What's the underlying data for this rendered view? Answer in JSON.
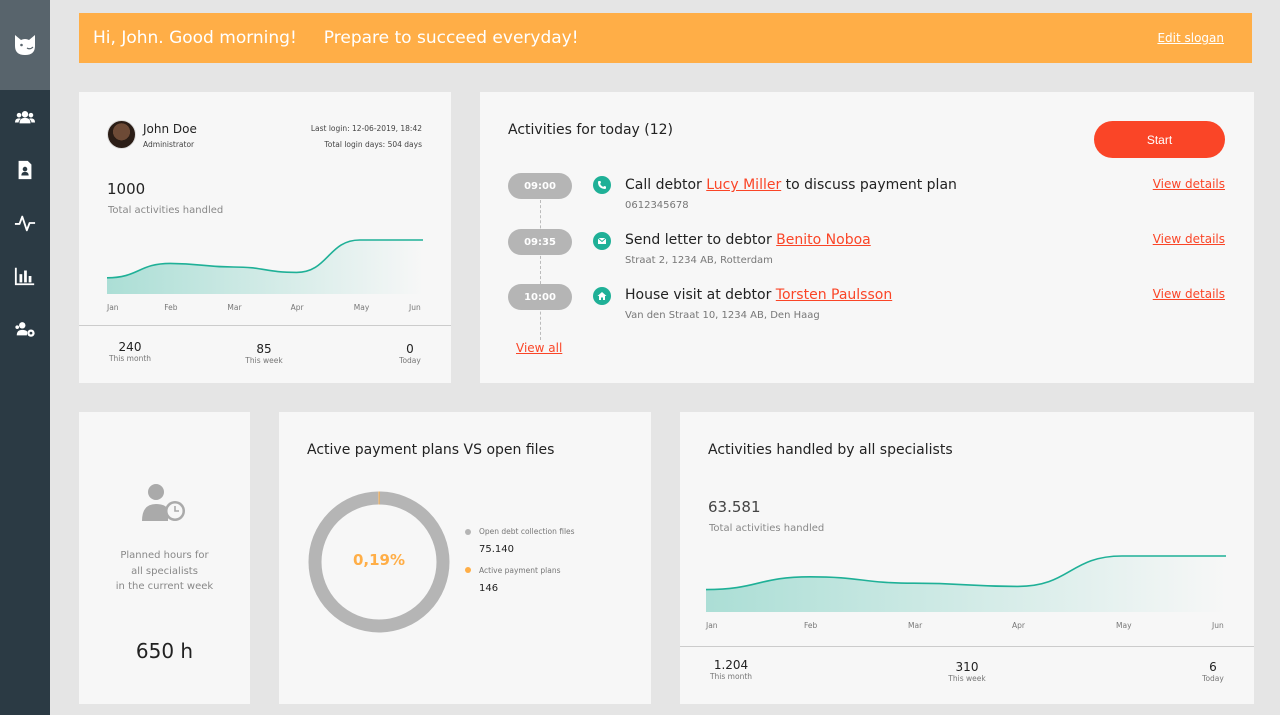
{
  "sidebar": {
    "logo": "cat-logo-icon",
    "items": [
      {
        "icon": "users-icon"
      },
      {
        "icon": "document-user-icon"
      },
      {
        "icon": "activity-pulse-icon"
      },
      {
        "icon": "bar-chart-icon"
      },
      {
        "icon": "users-settings-icon"
      }
    ]
  },
  "banner": {
    "greeting": "Hi, John. Good morning!",
    "slogan": "Prepare to succeed everyday!",
    "edit_label": "Edit slogan",
    "color": "#ffae47"
  },
  "profile": {
    "name": "John Doe",
    "role": "Administrator",
    "last_login": "Last login: 12-06-2019, 18:42",
    "total_login_days": "Total login days: 504 days",
    "total_value": "1000",
    "total_label": "Total activities handled",
    "chart_data": {
      "type": "area",
      "x": [
        "Jan",
        "Feb",
        "Mar",
        "Apr",
        "May",
        "Jun"
      ],
      "series": [
        {
          "values": [
            9,
            17,
            15,
            12,
            30,
            30
          ]
        }
      ],
      "ylim": [
        0,
        40
      ],
      "grid": false,
      "xlabel": "",
      "ylabel": "",
      "title": ""
    },
    "stats": [
      {
        "value": "240",
        "label": "This month"
      },
      {
        "value": "85",
        "label": "This week"
      },
      {
        "value": "0",
        "label": "Today"
      }
    ]
  },
  "activities": {
    "title": "Activities for today (12)",
    "start_label": "Start",
    "view_all_label": "View all",
    "accent": "#fa4527",
    "items": [
      {
        "time": "09:00",
        "icon": "phone-icon",
        "prefix": "Call debtor ",
        "link": "Lucy Miller",
        "suffix": " to discuss payment plan",
        "detail": "0612345678",
        "view": "View details"
      },
      {
        "time": "09:35",
        "icon": "mail-icon",
        "prefix": "Send letter to debtor ",
        "link": "Benito Noboa",
        "suffix": "",
        "detail": "Straat 2, 1234 AB, Rotterdam",
        "view": "View details"
      },
      {
        "time": "10:00",
        "icon": "home-icon",
        "prefix": "House visit at debtor ",
        "link": "Torsten Paulsson",
        "suffix": "",
        "detail": "Van den Straat 10, 1234 AB, Den Haag",
        "view": "View details"
      }
    ]
  },
  "hours": {
    "icon": "user-clock-icon",
    "desc_lines": [
      "Planned hours for",
      "all specialists",
      "in the current week"
    ],
    "value": "650 h"
  },
  "payment": {
    "title": "Active payment plans VS open files",
    "center": "0,19%",
    "chart_data": {
      "type": "pie",
      "labels": [
        "Open debt collection files",
        "Active payment plans"
      ],
      "values": [
        75140,
        146
      ],
      "colors": [
        "#b5b5b5",
        "#ffae47"
      ],
      "title": ""
    },
    "legend": [
      {
        "label": "Open debt collection files",
        "value": "75.140",
        "color": "#b5b5b5"
      },
      {
        "label": "Active payment plans",
        "value": "146",
        "color": "#ffae47"
      }
    ]
  },
  "specialists": {
    "title": "Activities handled by all specialists",
    "total_value": "63.581",
    "total_label": "Total activities handled",
    "chart_data": {
      "type": "area",
      "x": [
        "Jan",
        "Feb",
        "Mar",
        "Apr",
        "May",
        "Jun"
      ],
      "series": [
        {
          "values": [
            14,
            22,
            18,
            16,
            35,
            35
          ]
        }
      ],
      "ylim": [
        0,
        45
      ],
      "grid": false,
      "xlabel": "",
      "ylabel": "",
      "title": ""
    },
    "stats": [
      {
        "value": "1.204",
        "label": "This month"
      },
      {
        "value": "310",
        "label": "This week"
      },
      {
        "value": "6",
        "label": "Today"
      }
    ]
  },
  "colors": {
    "teal": "#1fb097",
    "orange": "#ffae47",
    "red": "#fa4527"
  }
}
